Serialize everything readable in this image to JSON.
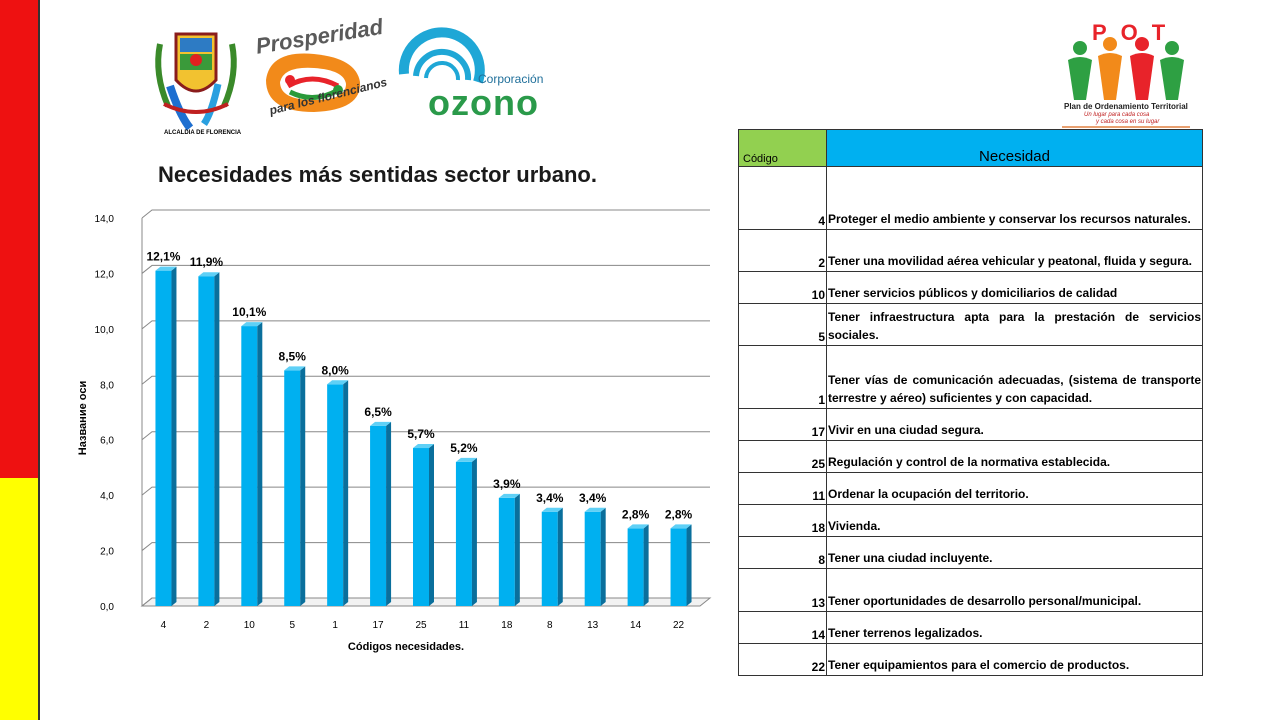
{
  "logos": {
    "alcaldia_caption": "ALCALDIA DE FLORENCIA",
    "prosperidad_title": "Prosperidad",
    "prosperidad_subtitle": "para los florencianos",
    "ozono_small": "Corporación",
    "ozono_big": "ozono",
    "pot_letters": "POT",
    "pot_caption": "Plan de Ordenamiento Territorial",
    "pot_tagline_1": "Un lugar para cada cosa",
    "pot_tagline_2": "y cada cosa en su lugar"
  },
  "colors": {
    "band_red": "#ee1111",
    "band_yellow": "#ffff00",
    "bar": "#00b0f0",
    "header_code": "#92d050",
    "header_need": "#00b0f0"
  },
  "chart_data": {
    "type": "bar",
    "title": "Necesidades más sentidas sector urbano.",
    "xlabel": "Códigos necesidades.",
    "ylabel": "Название оси",
    "categories": [
      "4",
      "2",
      "10",
      "5",
      "1",
      "17",
      "25",
      "11",
      "18",
      "8",
      "13",
      "14",
      "22"
    ],
    "values": [
      12.1,
      11.9,
      10.1,
      8.5,
      8.0,
      6.5,
      5.7,
      5.2,
      3.9,
      3.4,
      3.4,
      2.8,
      2.8
    ],
    "data_labels": [
      "12,1%",
      "11,9%",
      "10,1%",
      "8,5%",
      "8,0%",
      "6,5%",
      "5,7%",
      "5,2%",
      "3,9%",
      "3,4%",
      "3,4%",
      "2,8%",
      "2,8%"
    ],
    "ylim": [
      0,
      14
    ],
    "yticks": [
      "0,0",
      "2,0",
      "4,0",
      "6,0",
      "8,0",
      "10,0",
      "12,0",
      "14,0"
    ],
    "grid": true,
    "style": "3d"
  },
  "table": {
    "header_code": "Código",
    "header_need": "Necesidad",
    "rows": [
      {
        "code": "4",
        "need": "Proteger el medio ambiente y conservar los recursos naturales."
      },
      {
        "code": "2",
        "need": "Tener una movilidad aérea vehicular y peatonal, fluida y segura."
      },
      {
        "code": "10",
        "need": "Tener servicios públicos y domiciliarios de calidad"
      },
      {
        "code": "5",
        "need": "Tener infraestructura apta para la prestación de servicios sociales."
      },
      {
        "code": "1",
        "need": "Tener vías de comunicación adecuadas, (sistema de transporte terrestre y aéreo) suficientes y con capacidad."
      },
      {
        "code": "17",
        "need": "Vivir en una ciudad segura."
      },
      {
        "code": "25",
        "need": "Regulación y control de la normativa establecida."
      },
      {
        "code": "11",
        "need": "Ordenar la ocupación del territorio."
      },
      {
        "code": "18",
        "need": "Vivienda."
      },
      {
        "code": "8",
        "need": "Tener una ciudad incluyente."
      },
      {
        "code": "13",
        "need": "Tener oportunidades de desarrollo personal/municipal."
      },
      {
        "code": "14",
        "need": "Tener terrenos legalizados."
      },
      {
        "code": "22",
        "need": "Tener equipamientos para el comercio de productos."
      }
    ]
  }
}
